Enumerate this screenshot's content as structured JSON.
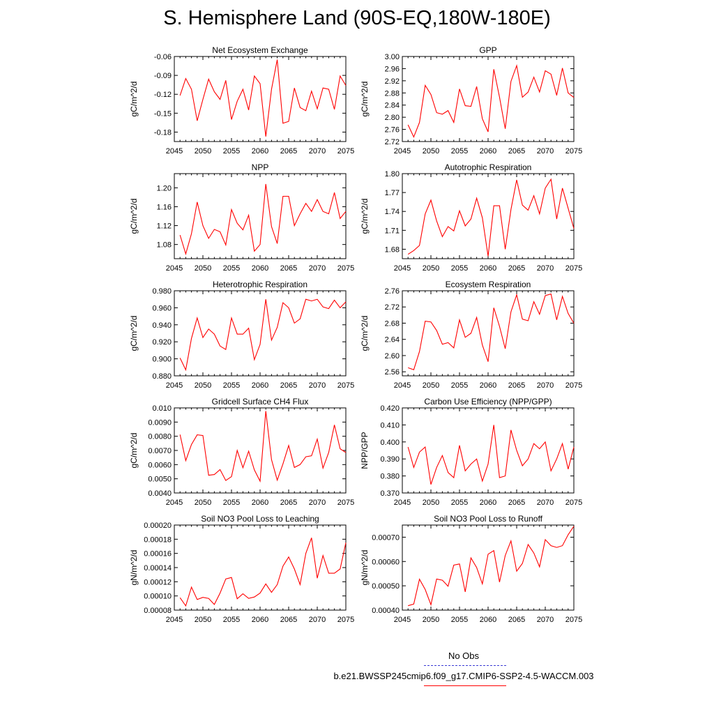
{
  "page_title": "S. Hemisphere Land (90S-EQ,180W-180E)",
  "colors": {
    "model_line": "#ff0000",
    "obs_line": "#3b3bd4",
    "axis": "#000000"
  },
  "legend": {
    "obs_label": "No Obs",
    "case_label": "b.e21.BWSSP245cmip6.f09_g17.CMIP6-SSP2-4.5-WACCM.003"
  },
  "chart_data": [
    {
      "type": "line",
      "title": "Net Ecosystem Exchange",
      "xlabel": "",
      "ylabel": "gC/m^2/d",
      "xlim": [
        2045,
        2075
      ],
      "ylim": [
        -0.195,
        -0.06
      ],
      "xticks": [
        2045,
        2050,
        2055,
        2060,
        2065,
        2070,
        2075
      ],
      "yticks": [
        -0.18,
        -0.15,
        -0.12,
        -0.09,
        -0.06
      ],
      "ytick_labels": [
        "-0.18",
        "-0.15",
        "-0.12",
        "-0.09",
        "-0.06"
      ],
      "x": [
        2046,
        2047,
        2048,
        2049,
        2050,
        2051,
        2052,
        2053,
        2054,
        2055,
        2056,
        2057,
        2058,
        2059,
        2060,
        2061,
        2062,
        2063,
        2064,
        2065,
        2066,
        2067,
        2068,
        2069,
        2070,
        2071,
        2072,
        2073,
        2074,
        2075
      ],
      "values": [
        -0.122,
        -0.095,
        -0.112,
        -0.162,
        -0.128,
        -0.096,
        -0.116,
        -0.128,
        -0.098,
        -0.16,
        -0.131,
        -0.112,
        -0.145,
        -0.091,
        -0.103,
        -0.187,
        -0.112,
        -0.065,
        -0.166,
        -0.163,
        -0.11,
        -0.141,
        -0.146,
        -0.115,
        -0.143,
        -0.11,
        -0.112,
        -0.144,
        -0.091,
        -0.106
      ]
    },
    {
      "type": "line",
      "title": "GPP",
      "xlabel": "",
      "ylabel": "gC/m^2/d",
      "xlim": [
        2045,
        2075
      ],
      "ylim": [
        2.72,
        3.0
      ],
      "xticks": [
        2045,
        2050,
        2055,
        2060,
        2065,
        2070,
        2075
      ],
      "yticks": [
        2.72,
        2.76,
        2.8,
        2.84,
        2.88,
        2.92,
        2.96,
        3.0
      ],
      "ytick_labels": [
        "2.72",
        "2.76",
        "2.80",
        "2.84",
        "2.88",
        "2.92",
        "2.96",
        "3.00"
      ],
      "x": [
        2046,
        2047,
        2048,
        2049,
        2050,
        2051,
        2052,
        2053,
        2054,
        2055,
        2056,
        2057,
        2058,
        2059,
        2060,
        2061,
        2062,
        2063,
        2064,
        2065,
        2066,
        2067,
        2068,
        2069,
        2070,
        2071,
        2072,
        2073,
        2074,
        2075
      ],
      "values": [
        2.775,
        2.735,
        2.783,
        2.905,
        2.875,
        2.815,
        2.81,
        2.822,
        2.783,
        2.893,
        2.838,
        2.836,
        2.901,
        2.795,
        2.752,
        2.958,
        2.866,
        2.762,
        2.918,
        2.97,
        2.866,
        2.883,
        2.932,
        2.883,
        2.953,
        2.942,
        2.872,
        2.962,
        2.88,
        2.865
      ]
    },
    {
      "type": "line",
      "title": "NPP",
      "xlabel": "",
      "ylabel": "gC/m^2/d",
      "xlim": [
        2045,
        2075
      ],
      "ylim": [
        1.05,
        1.23
      ],
      "xticks": [
        2045,
        2050,
        2055,
        2060,
        2065,
        2070,
        2075
      ],
      "yticks": [
        1.08,
        1.12,
        1.16,
        1.2
      ],
      "ytick_labels": [
        "1.08",
        "1.12",
        "1.16",
        "1.20"
      ],
      "x": [
        2046,
        2047,
        2048,
        2049,
        2050,
        2051,
        2052,
        2053,
        2054,
        2055,
        2056,
        2057,
        2058,
        2059,
        2060,
        2061,
        2062,
        2063,
        2064,
        2065,
        2066,
        2067,
        2068,
        2069,
        2070,
        2071,
        2072,
        2073,
        2074,
        2075
      ],
      "values": [
        1.1,
        1.06,
        1.103,
        1.17,
        1.12,
        1.093,
        1.112,
        1.107,
        1.079,
        1.154,
        1.125,
        1.111,
        1.142,
        1.066,
        1.08,
        1.208,
        1.118,
        1.082,
        1.182,
        1.182,
        1.12,
        1.145,
        1.167,
        1.15,
        1.175,
        1.15,
        1.145,
        1.19,
        1.135,
        1.15
      ]
    },
    {
      "type": "line",
      "title": "Autotrophic Respiration",
      "xlabel": "",
      "ylabel": "gC/m^2/d",
      "xlim": [
        2045,
        2075
      ],
      "ylim": [
        1.665,
        1.8
      ],
      "xticks": [
        2045,
        2050,
        2055,
        2060,
        2065,
        2070,
        2075
      ],
      "yticks": [
        1.68,
        1.71,
        1.74,
        1.77,
        1.8
      ],
      "ytick_labels": [
        "1.68",
        "1.71",
        "1.74",
        "1.77",
        "1.80"
      ],
      "x": [
        2046,
        2047,
        2048,
        2049,
        2050,
        2051,
        2052,
        2053,
        2054,
        2055,
        2056,
        2057,
        2058,
        2059,
        2060,
        2061,
        2062,
        2063,
        2064,
        2065,
        2066,
        2067,
        2068,
        2069,
        2070,
        2071,
        2072,
        2073,
        2074,
        2075
      ],
      "values": [
        1.672,
        1.678,
        1.686,
        1.736,
        1.758,
        1.725,
        1.7,
        1.716,
        1.709,
        1.741,
        1.717,
        1.728,
        1.761,
        1.73,
        1.669,
        1.749,
        1.749,
        1.68,
        1.743,
        1.79,
        1.75,
        1.742,
        1.765,
        1.736,
        1.777,
        1.791,
        1.728,
        1.777,
        1.745,
        1.713
      ]
    },
    {
      "type": "line",
      "title": "Heterotrophic Respiration",
      "xlabel": "",
      "ylabel": "gC/m^2/d",
      "xlim": [
        2045,
        2075
      ],
      "ylim": [
        0.88,
        0.98
      ],
      "xticks": [
        2045,
        2050,
        2055,
        2060,
        2065,
        2070,
        2075
      ],
      "yticks": [
        0.88,
        0.9,
        0.92,
        0.94,
        0.96,
        0.98
      ],
      "ytick_labels": [
        "0.880",
        "0.900",
        "0.920",
        "0.940",
        "0.960",
        "0.980"
      ],
      "x": [
        2046,
        2047,
        2048,
        2049,
        2050,
        2051,
        2052,
        2053,
        2054,
        2055,
        2056,
        2057,
        2058,
        2059,
        2060,
        2061,
        2062,
        2063,
        2064,
        2065,
        2066,
        2067,
        2068,
        2069,
        2070,
        2071,
        2072,
        2073,
        2074,
        2075
      ],
      "values": [
        0.901,
        0.887,
        0.924,
        0.948,
        0.925,
        0.935,
        0.929,
        0.915,
        0.911,
        0.948,
        0.929,
        0.929,
        0.936,
        0.899,
        0.917,
        0.97,
        0.922,
        0.937,
        0.966,
        0.96,
        0.942,
        0.947,
        0.97,
        0.968,
        0.97,
        0.961,
        0.959,
        0.969,
        0.96,
        0.967
      ]
    },
    {
      "type": "line",
      "title": "Ecosystem Respiration",
      "xlabel": "",
      "ylabel": "gC/m^2/d",
      "xlim": [
        2045,
        2075
      ],
      "ylim": [
        2.55,
        2.76
      ],
      "xticks": [
        2045,
        2050,
        2055,
        2060,
        2065,
        2070,
        2075
      ],
      "yticks": [
        2.56,
        2.6,
        2.64,
        2.68,
        2.72,
        2.76
      ],
      "ytick_labels": [
        "2.56",
        "2.60",
        "2.64",
        "2.68",
        "2.72",
        "2.76"
      ],
      "x": [
        2046,
        2047,
        2048,
        2049,
        2050,
        2051,
        2052,
        2053,
        2054,
        2055,
        2056,
        2057,
        2058,
        2059,
        2060,
        2061,
        2062,
        2063,
        2064,
        2065,
        2066,
        2067,
        2068,
        2069,
        2070,
        2071,
        2072,
        2073,
        2074,
        2075
      ],
      "values": [
        2.57,
        2.565,
        2.61,
        2.685,
        2.683,
        2.662,
        2.628,
        2.632,
        2.619,
        2.688,
        2.645,
        2.655,
        2.694,
        2.626,
        2.585,
        2.718,
        2.672,
        2.617,
        2.708,
        2.75,
        2.69,
        2.686,
        2.733,
        2.702,
        2.748,
        2.752,
        2.688,
        2.746,
        2.704,
        2.68
      ]
    },
    {
      "type": "line",
      "title": "Gridcell Surface CH4 Flux",
      "xlabel": "",
      "ylabel": "gC/m^2/d",
      "xlim": [
        2045,
        2075
      ],
      "ylim": [
        0.004,
        0.01
      ],
      "xticks": [
        2045,
        2050,
        2055,
        2060,
        2065,
        2070,
        2075
      ],
      "yticks": [
        0.004,
        0.005,
        0.006,
        0.007,
        0.008,
        0.009,
        0.01
      ],
      "ytick_labels": [
        "0.0040",
        "0.0050",
        "0.0060",
        "0.0070",
        "0.0080",
        "0.0090",
        "0.010"
      ],
      "x": [
        2046,
        2047,
        2048,
        2049,
        2050,
        2051,
        2052,
        2053,
        2054,
        2055,
        2056,
        2057,
        2058,
        2059,
        2060,
        2061,
        2062,
        2063,
        2064,
        2065,
        2066,
        2067,
        2068,
        2069,
        2070,
        2071,
        2072,
        2073,
        2074,
        2075
      ],
      "values": [
        0.00812,
        0.00628,
        0.00742,
        0.0081,
        0.00805,
        0.00525,
        0.0053,
        0.00565,
        0.00488,
        0.00515,
        0.007,
        0.00578,
        0.00695,
        0.00563,
        0.00483,
        0.00978,
        0.00635,
        0.0049,
        0.00605,
        0.00735,
        0.0058,
        0.006,
        0.00655,
        0.00662,
        0.0078,
        0.00575,
        0.00685,
        0.0088,
        0.00712,
        0.00685
      ]
    },
    {
      "type": "line",
      "title": "Carbon Use Efficiency (NPP/GPP)",
      "xlabel": "",
      "ylabel": "NPP/GPP",
      "xlim": [
        2045,
        2075
      ],
      "ylim": [
        0.37,
        0.42
      ],
      "xticks": [
        2045,
        2050,
        2055,
        2060,
        2065,
        2070,
        2075
      ],
      "yticks": [
        0.37,
        0.38,
        0.39,
        0.4,
        0.41,
        0.42
      ],
      "ytick_labels": [
        "0.370",
        "0.380",
        "0.390",
        "0.400",
        "0.410",
        "0.420"
      ],
      "x": [
        2046,
        2047,
        2048,
        2049,
        2050,
        2051,
        2052,
        2053,
        2054,
        2055,
        2056,
        2057,
        2058,
        2059,
        2060,
        2061,
        2062,
        2063,
        2064,
        2065,
        2066,
        2067,
        2068,
        2069,
        2070,
        2071,
        2072,
        2073,
        2074,
        2075
      ],
      "values": [
        0.397,
        0.385,
        0.394,
        0.397,
        0.375,
        0.385,
        0.392,
        0.382,
        0.379,
        0.398,
        0.383,
        0.387,
        0.39,
        0.377,
        0.387,
        0.41,
        0.379,
        0.38,
        0.407,
        0.395,
        0.386,
        0.39,
        0.399,
        0.396,
        0.4,
        0.383,
        0.39,
        0.399,
        0.384,
        0.397
      ]
    },
    {
      "type": "line",
      "title": "Soil NO3 Pool Loss to Leaching",
      "xlabel": "",
      "ylabel": "gN/m^2/d",
      "xlim": [
        2045,
        2075
      ],
      "ylim": [
        8e-05,
        0.0002
      ],
      "xticks": [
        2045,
        2050,
        2055,
        2060,
        2065,
        2070,
        2075
      ],
      "yticks": [
        8e-05,
        0.0001,
        0.00012,
        0.00014,
        0.00016,
        0.00018,
        0.0002
      ],
      "ytick_labels": [
        "0.00008",
        "0.00010",
        "0.00012",
        "0.00014",
        "0.00016",
        "0.00018",
        "0.00020"
      ],
      "x": [
        2046,
        2047,
        2048,
        2049,
        2050,
        2051,
        2052,
        2053,
        2054,
        2055,
        2056,
        2057,
        2058,
        2059,
        2060,
        2061,
        2062,
        2063,
        2064,
        2065,
        2066,
        2067,
        2068,
        2069,
        2070,
        2071,
        2072,
        2073,
        2074,
        2075
      ],
      "values": [
        9.75e-05,
        8.6e-05,
        0.0001125,
        9.5e-05,
        9.8e-05,
        9.65e-05,
        8.8e-05,
        0.000104,
        0.000124,
        0.000126,
        9.6e-05,
        0.000103,
        9.65e-05,
        9.85e-05,
        0.000104,
        0.000117,
        0.000105,
        0.000116,
        0.000142,
        0.000155,
        0.000138,
        0.000116,
        0.00016,
        0.000182,
        0.000125,
        0.000157,
        0.000132,
        0.000132,
        0.000138,
        0.000175
      ]
    },
    {
      "type": "line",
      "title": "Soil NO3 Pool Loss to Runoff",
      "xlabel": "",
      "ylabel": "gN/m^2/d",
      "xlim": [
        2045,
        2075
      ],
      "ylim": [
        0.0004,
        0.00075
      ],
      "xticks": [
        2045,
        2050,
        2055,
        2060,
        2065,
        2070,
        2075
      ],
      "yticks": [
        0.0004,
        0.0005,
        0.0006,
        0.0007
      ],
      "ytick_labels": [
        "0.00040",
        "0.00050",
        "0.00060",
        "0.00070"
      ],
      "x": [
        2046,
        2047,
        2048,
        2049,
        2050,
        2051,
        2052,
        2053,
        2054,
        2055,
        2056,
        2057,
        2058,
        2059,
        2060,
        2061,
        2062,
        2063,
        2064,
        2065,
        2066,
        2067,
        2068,
        2069,
        2070,
        2071,
        2072,
        2073,
        2074,
        2075
      ],
      "values": [
        0.000418,
        0.000425,
        0.000527,
        0.000485,
        0.000422,
        0.000528,
        0.000523,
        0.000498,
        0.000585,
        0.00059,
        0.000475,
        0.000615,
        0.000575,
        0.000508,
        0.00063,
        0.000645,
        0.000515,
        0.000625,
        0.000685,
        0.00056,
        0.000592,
        0.00067,
        0.000635,
        0.000578,
        0.00069,
        0.000665,
        0.000658,
        0.000665,
        0.00071,
        0.000745
      ]
    }
  ]
}
